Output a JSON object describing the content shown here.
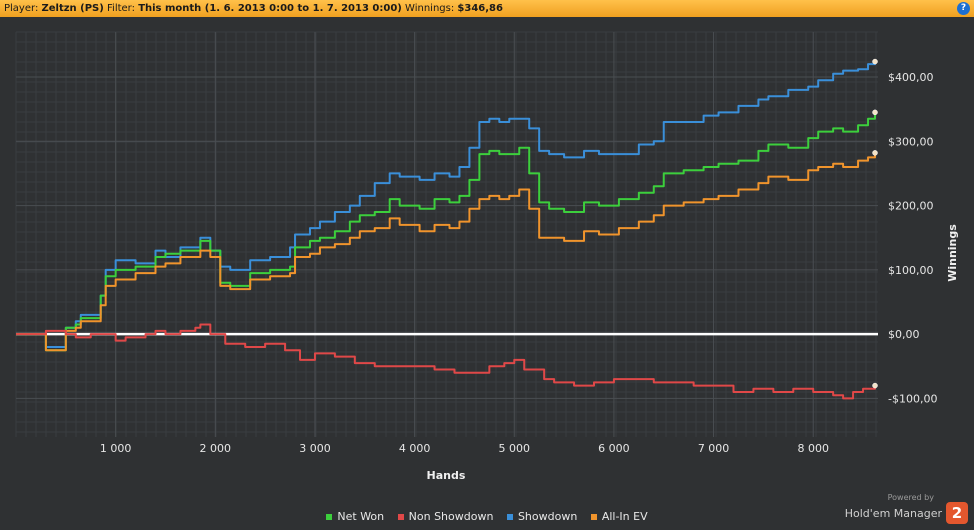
{
  "header": {
    "player_label": "Player:",
    "player_value": "Zeltzn (PS)",
    "filter_label": "Filter:",
    "filter_value": "This month (1. 6. 2013 0:00 to 1. 7. 2013 0:00)",
    "winnings_label": "Winnings:",
    "winnings_value": "$346,86",
    "help_glyph": "?"
  },
  "brand": {
    "powered_by": "Powered by",
    "name": "Hold'em Manager",
    "logo_text": "2"
  },
  "chart_data": {
    "type": "line",
    "xlabel": "Hands",
    "ylabel": "Winnings",
    "xlim": [
      0,
      8650
    ],
    "ylim": [
      -160,
      470
    ],
    "x_ticks": [
      1000,
      2000,
      3000,
      4000,
      5000,
      6000,
      7000,
      8000
    ],
    "x_tick_labels": [
      "1 000",
      "2 000",
      "3 000",
      "4 000",
      "5 000",
      "6 000",
      "7 000",
      "8 000"
    ],
    "y_ticks": [
      -100,
      0,
      100,
      200,
      300,
      400
    ],
    "y_tick_labels": [
      "-$100,00",
      "$0,00",
      "$100,00",
      "$200,00",
      "$300,00",
      "$400,00"
    ],
    "grid": true,
    "legend_position": "bottom",
    "zero_line_color": "#ffffff",
    "series": [
      {
        "name": "Showdown",
        "color": "#3a8fd9",
        "x": [
          0,
          300,
          500,
          600,
          650,
          850,
          900,
          1000,
          1200,
          1400,
          1500,
          1650,
          1850,
          1950,
          2050,
          2150,
          2350,
          2550,
          2750,
          2800,
          2950,
          3050,
          3200,
          3350,
          3450,
          3600,
          3750,
          3850,
          3950,
          4050,
          4200,
          4350,
          4450,
          4550,
          4650,
          4750,
          4850,
          4950,
          5050,
          5150,
          5250,
          5350,
          5500,
          5700,
          5850,
          6050,
          6250,
          6400,
          6500,
          6700,
          6900,
          7050,
          7250,
          7450,
          7550,
          7750,
          7950,
          8050,
          8200,
          8300,
          8450,
          8550,
          8620
        ],
        "values": [
          0,
          -20,
          10,
          20,
          30,
          60,
          100,
          115,
          110,
          130,
          120,
          135,
          150,
          130,
          105,
          100,
          115,
          120,
          135,
          155,
          165,
          175,
          190,
          200,
          215,
          235,
          250,
          245,
          245,
          240,
          250,
          245,
          260,
          290,
          330,
          335,
          330,
          335,
          335,
          320,
          285,
          280,
          275,
          285,
          280,
          280,
          295,
          300,
          330,
          330,
          340,
          345,
          355,
          365,
          370,
          380,
          385,
          395,
          405,
          410,
          412,
          420,
          424
        ]
      },
      {
        "name": "Net Won",
        "color": "#3ccf3c",
        "x": [
          0,
          300,
          500,
          600,
          650,
          850,
          900,
          1000,
          1200,
          1400,
          1500,
          1650,
          1850,
          1950,
          2050,
          2150,
          2350,
          2550,
          2750,
          2800,
          2950,
          3050,
          3200,
          3350,
          3450,
          3600,
          3750,
          3850,
          3950,
          4050,
          4200,
          4350,
          4450,
          4550,
          4650,
          4750,
          4850,
          4950,
          5050,
          5150,
          5250,
          5350,
          5500,
          5700,
          5850,
          6050,
          6250,
          6400,
          6500,
          6700,
          6900,
          7050,
          7250,
          7450,
          7550,
          7750,
          7950,
          8050,
          8200,
          8300,
          8450,
          8550,
          8620
        ],
        "values": [
          0,
          -25,
          10,
          15,
          25,
          60,
          90,
          100,
          105,
          120,
          125,
          130,
          145,
          130,
          80,
          75,
          95,
          100,
          105,
          135,
          145,
          150,
          160,
          175,
          185,
          190,
          210,
          200,
          200,
          195,
          210,
          205,
          215,
          240,
          280,
          285,
          280,
          280,
          290,
          250,
          205,
          195,
          190,
          205,
          200,
          210,
          220,
          230,
          250,
          255,
          260,
          265,
          270,
          285,
          295,
          290,
          305,
          315,
          320,
          315,
          325,
          335,
          345
        ]
      },
      {
        "name": "All-In EV",
        "color": "#f0942c",
        "x": [
          0,
          300,
          500,
          600,
          650,
          850,
          900,
          1000,
          1200,
          1400,
          1500,
          1650,
          1850,
          1950,
          2050,
          2150,
          2350,
          2550,
          2750,
          2800,
          2950,
          3050,
          3200,
          3350,
          3450,
          3600,
          3750,
          3850,
          3950,
          4050,
          4200,
          4350,
          4450,
          4550,
          4650,
          4750,
          4850,
          4950,
          5050,
          5150,
          5250,
          5350,
          5500,
          5700,
          5850,
          6050,
          6250,
          6400,
          6500,
          6700,
          6900,
          7050,
          7250,
          7450,
          7550,
          7750,
          7950,
          8050,
          8200,
          8300,
          8450,
          8550,
          8620
        ],
        "values": [
          0,
          -25,
          5,
          10,
          20,
          45,
          75,
          85,
          95,
          105,
          110,
          120,
          130,
          120,
          75,
          70,
          85,
          90,
          95,
          120,
          125,
          135,
          140,
          150,
          160,
          165,
          180,
          170,
          170,
          160,
          170,
          165,
          175,
          195,
          210,
          215,
          210,
          215,
          225,
          195,
          150,
          150,
          145,
          160,
          155,
          165,
          175,
          185,
          200,
          205,
          210,
          215,
          225,
          235,
          245,
          240,
          255,
          260,
          265,
          260,
          270,
          275,
          282
        ]
      },
      {
        "name": "Non Showdown",
        "color": "#e04848",
        "x": [
          0,
          300,
          500,
          600,
          750,
          1000,
          1100,
          1200,
          1300,
          1400,
          1500,
          1650,
          1800,
          1850,
          1950,
          2100,
          2300,
          2500,
          2700,
          2850,
          3000,
          3200,
          3400,
          3600,
          3800,
          4000,
          4200,
          4400,
          4600,
          4750,
          4900,
          5000,
          5100,
          5300,
          5400,
          5600,
          5800,
          6000,
          6200,
          6400,
          6600,
          6800,
          7000,
          7200,
          7400,
          7600,
          7800,
          8000,
          8200,
          8300,
          8400,
          8500,
          8620
        ],
        "values": [
          0,
          5,
          0,
          -5,
          0,
          -10,
          -5,
          -5,
          0,
          5,
          0,
          5,
          10,
          15,
          0,
          -15,
          -20,
          -15,
          -25,
          -40,
          -30,
          -35,
          -45,
          -50,
          -50,
          -50,
          -55,
          -60,
          -60,
          -50,
          -45,
          -40,
          -55,
          -70,
          -75,
          -80,
          -75,
          -70,
          -70,
          -75,
          -75,
          -80,
          -80,
          -90,
          -85,
          -90,
          -85,
          -90,
          -95,
          -100,
          -90,
          -85,
          -80
        ]
      }
    ]
  }
}
